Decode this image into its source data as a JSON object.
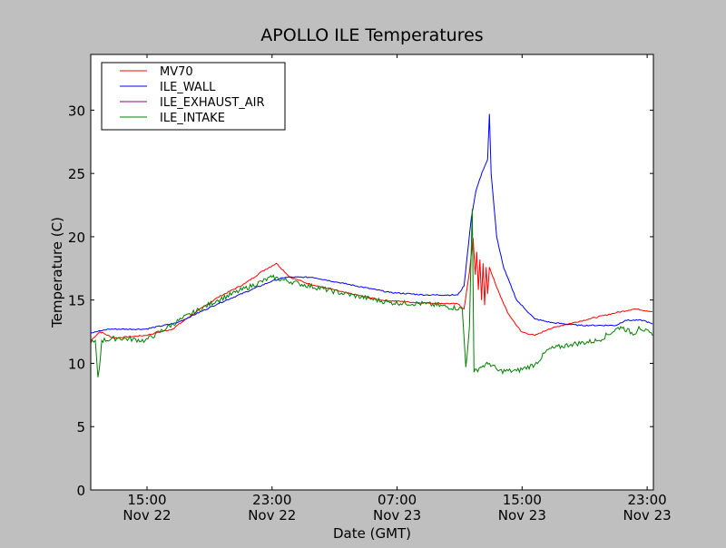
{
  "chart_data": {
    "type": "line",
    "title": "APOLLO ILE Temperatures",
    "xlabel": "Date (GMT)",
    "ylabel": "Temperature (C)",
    "x_units": "hours since Nov 22 00:00 GMT",
    "xlim": [
      11.4,
      47.4
    ],
    "ylim": [
      0,
      34.4
    ],
    "grid": false,
    "legend_position": "top-left",
    "yticks": [
      0,
      5,
      10,
      15,
      20,
      25,
      30
    ],
    "xticks": [
      {
        "value": 15,
        "label": "15:00",
        "sublabel": "Nov 22"
      },
      {
        "value": 23,
        "label": "23:00",
        "sublabel": "Nov 22"
      },
      {
        "value": 31,
        "label": "07:00",
        "sublabel": "Nov 23"
      },
      {
        "value": 39,
        "label": "15:00",
        "sublabel": "Nov 23"
      },
      {
        "value": 47,
        "label": "23:00",
        "sublabel": "Nov 23"
      }
    ],
    "series": [
      {
        "name": "MV70",
        "color": "#ff0000",
        "noise": 0.05,
        "points": [
          [
            11.4,
            11.8
          ],
          [
            11.98,
            12.5
          ],
          [
            12.85,
            12.0
          ],
          [
            14.88,
            12.2
          ],
          [
            16.62,
            12.7
          ],
          [
            18.07,
            14.0
          ],
          [
            19.52,
            15.2
          ],
          [
            21.26,
            16.3
          ],
          [
            22.41,
            17.3
          ],
          [
            23.28,
            17.9
          ],
          [
            24.15,
            16.8
          ],
          [
            25.31,
            16.3
          ],
          [
            27.63,
            15.6
          ],
          [
            29.95,
            15.0
          ],
          [
            32.27,
            14.8
          ],
          [
            34.88,
            14.7
          ],
          [
            35.28,
            14.3
          ],
          [
            35.63,
            17.2
          ],
          [
            35.86,
            19.9
          ],
          [
            36.0,
            17.0
          ],
          [
            36.1,
            18.8
          ],
          [
            36.2,
            15.8
          ],
          [
            36.3,
            18.2
          ],
          [
            36.4,
            15.0
          ],
          [
            36.5,
            17.9
          ],
          [
            36.6,
            14.6
          ],
          [
            36.7,
            17.6
          ],
          [
            36.8,
            15.5
          ],
          [
            36.91,
            17.6
          ],
          [
            37.37,
            16.0
          ],
          [
            38.07,
            14.0
          ],
          [
            38.94,
            12.5
          ],
          [
            39.81,
            12.2
          ],
          [
            40.68,
            12.7
          ],
          [
            41.54,
            13.0
          ],
          [
            43.28,
            13.5
          ],
          [
            45.02,
            14.0
          ],
          [
            46.18,
            14.3
          ],
          [
            47.34,
            14.1
          ]
        ]
      },
      {
        "name": "ILE_WALL",
        "color": "#0000ff",
        "noise": 0.05,
        "points": [
          [
            11.4,
            12.4
          ],
          [
            12.56,
            12.7
          ],
          [
            14.88,
            12.7
          ],
          [
            16.91,
            13.2
          ],
          [
            19.52,
            14.7
          ],
          [
            23.0,
            16.5
          ],
          [
            23.86,
            16.8
          ],
          [
            25.6,
            16.8
          ],
          [
            27.63,
            16.3
          ],
          [
            30.53,
            15.6
          ],
          [
            32.85,
            15.4
          ],
          [
            34.88,
            15.4
          ],
          [
            35.28,
            16.1
          ],
          [
            35.75,
            21.5
          ],
          [
            36.04,
            23.6
          ],
          [
            36.44,
            25.1
          ],
          [
            36.79,
            26.1
          ],
          [
            36.91,
            29.7
          ],
          [
            37.02,
            25.0
          ],
          [
            37.37,
            20.0
          ],
          [
            37.83,
            17.5
          ],
          [
            38.65,
            15.0
          ],
          [
            39.81,
            13.5
          ],
          [
            40.97,
            13.2
          ],
          [
            42.71,
            13.0
          ],
          [
            45.02,
            13.0
          ],
          [
            45.6,
            13.4
          ],
          [
            46.76,
            13.4
          ],
          [
            47.34,
            13.1
          ]
        ]
      },
      {
        "name": "ILE_EXHAUST_AIR",
        "color": "#800080",
        "noise": 0,
        "points": []
      },
      {
        "name": "ILE_INTAKE",
        "color": "#008000",
        "noise": 0.2,
        "points": [
          [
            11.4,
            11.6
          ],
          [
            11.69,
            11.8
          ],
          [
            11.86,
            8.9
          ],
          [
            11.95,
            9.6
          ],
          [
            12.1,
            11.8
          ],
          [
            13.14,
            12.0
          ],
          [
            14.88,
            11.8
          ],
          [
            17.2,
            13.5
          ],
          [
            19.52,
            15.0
          ],
          [
            23.0,
            16.8
          ],
          [
            24.73,
            16.3
          ],
          [
            27.63,
            15.5
          ],
          [
            30.53,
            14.8
          ],
          [
            32.85,
            14.7
          ],
          [
            35.17,
            14.3
          ],
          [
            35.4,
            9.7
          ],
          [
            35.63,
            12.9
          ],
          [
            35.81,
            22.2
          ],
          [
            35.92,
            9.3
          ],
          [
            36.33,
            9.7
          ],
          [
            36.91,
            10.0
          ],
          [
            37.49,
            9.4
          ],
          [
            38.65,
            9.4
          ],
          [
            39.81,
            9.9
          ],
          [
            40.68,
            11.1
          ],
          [
            42.12,
            11.5
          ],
          [
            43.86,
            11.8
          ],
          [
            45.31,
            12.9
          ],
          [
            46.18,
            12.3
          ],
          [
            46.47,
            12.9
          ],
          [
            47.34,
            12.2
          ]
        ]
      }
    ]
  }
}
